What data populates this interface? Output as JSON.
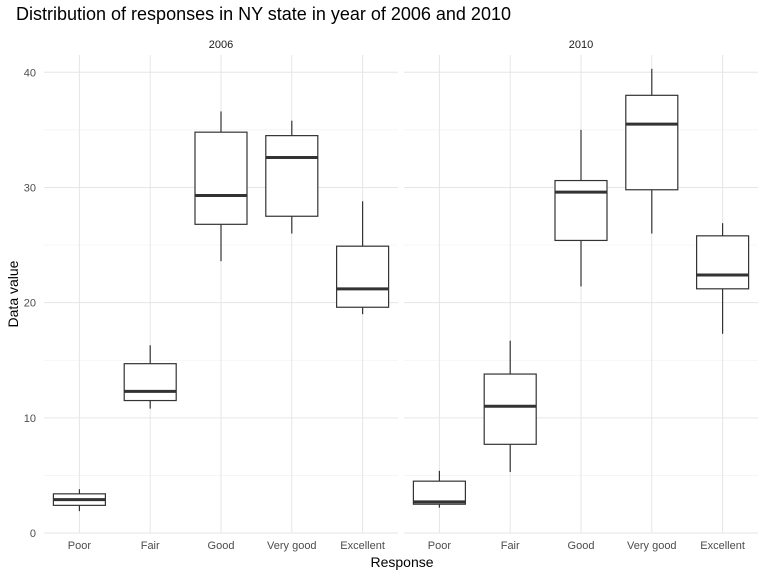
{
  "chart_data": {
    "type": "boxplot",
    "title": "Distribution of responses in NY state in year of 2006 and 2010",
    "xlabel": "Response",
    "ylabel": "Data value",
    "ylim": [
      0,
      41.5
    ],
    "yticks": [
      0,
      10,
      20,
      30,
      40
    ],
    "categories": [
      "Poor",
      "Fair",
      "Good",
      "Very good",
      "Excellent"
    ],
    "panels": [
      {
        "name": "2006",
        "boxes": [
          {
            "category": "Poor",
            "min": 1.9,
            "q1": 2.4,
            "median": 2.9,
            "q3": 3.4,
            "max": 3.8
          },
          {
            "category": "Fair",
            "min": 10.8,
            "q1": 11.5,
            "median": 12.3,
            "q3": 14.7,
            "max": 16.3
          },
          {
            "category": "Good",
            "min": 23.6,
            "q1": 26.8,
            "median": 29.3,
            "q3": 34.8,
            "max": 36.6
          },
          {
            "category": "Very good",
            "min": 26.0,
            "q1": 27.5,
            "median": 32.6,
            "q3": 34.5,
            "max": 35.8
          },
          {
            "category": "Excellent",
            "min": 19.0,
            "q1": 19.6,
            "median": 21.2,
            "q3": 24.9,
            "max": 28.8
          }
        ]
      },
      {
        "name": "2010",
        "boxes": [
          {
            "category": "Poor",
            "min": 2.2,
            "q1": 2.5,
            "median": 2.7,
            "q3": 4.5,
            "max": 5.4
          },
          {
            "category": "Fair",
            "min": 5.3,
            "q1": 7.7,
            "median": 11.0,
            "q3": 13.8,
            "max": 16.7
          },
          {
            "category": "Good",
            "min": 21.4,
            "q1": 25.4,
            "median": 29.6,
            "q3": 30.6,
            "max": 35.0
          },
          {
            "category": "Very good",
            "min": 26.0,
            "q1": 29.8,
            "median": 35.5,
            "q3": 38.0,
            "max": 40.3
          },
          {
            "category": "Excellent",
            "min": 17.3,
            "q1": 21.2,
            "median": 22.4,
            "q3": 25.8,
            "max": 26.9
          }
        ]
      }
    ],
    "grid": true,
    "legend": "none"
  }
}
